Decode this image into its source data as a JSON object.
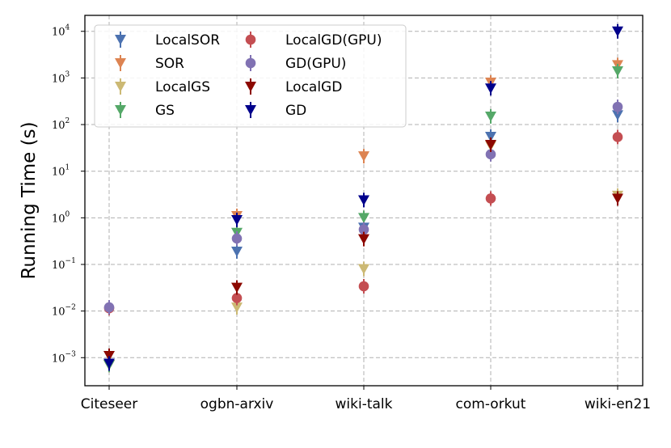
{
  "chart_data": {
    "type": "scatter",
    "title": "",
    "xlabel": "",
    "ylabel": "Running Time (s)",
    "yscale": "log",
    "ylim": [
      0.00025,
      22000
    ],
    "y_ticks": [
      {
        "base": "10",
        "exp": "−3",
        "value": 0.001
      },
      {
        "base": "10",
        "exp": "−2",
        "value": 0.01
      },
      {
        "base": "10",
        "exp": "−1",
        "value": 0.1
      },
      {
        "base": "10",
        "exp": "0",
        "value": 1
      },
      {
        "base": "10",
        "exp": "1",
        "value": 10
      },
      {
        "base": "10",
        "exp": "2",
        "value": 100
      },
      {
        "base": "10",
        "exp": "3",
        "value": 1000
      },
      {
        "base": "10",
        "exp": "4",
        "value": 10000
      }
    ],
    "categories": [
      "Citeseer",
      "ogbn-arxiv",
      "wiki-talk",
      "com-orkut",
      "wiki-en21"
    ],
    "grid": true,
    "legend_position": "top-left",
    "series": [
      {
        "name": "LocalSOR",
        "marker": "triangle-down",
        "color": "#4c72b0",
        "values": [
          0.0007,
          0.19,
          0.62,
          55,
          160
        ]
      },
      {
        "name": "SOR",
        "marker": "triangle-down",
        "color": "#dd8452",
        "values": [
          0.0007,
          1.1,
          21,
          800,
          1900
        ]
      },
      {
        "name": "LocalGS",
        "marker": "triangle-down",
        "color": "#ccb974",
        "values": [
          0.0007,
          0.012,
          0.08,
          35,
          3
        ]
      },
      {
        "name": "GS",
        "marker": "triangle-down",
        "color": "#55a868",
        "values": [
          0.0007,
          0.48,
          1.0,
          150,
          1400
        ]
      },
      {
        "name": "LocalGD(GPU)",
        "marker": "circle",
        "color": "#c44e52",
        "values": [
          0.0115,
          0.019,
          0.034,
          2.6,
          54
        ]
      },
      {
        "name": "GD(GPU)",
        "marker": "circle",
        "color": "#8172b3",
        "values": [
          0.012,
          0.36,
          0.56,
          23,
          240
        ]
      },
      {
        "name": "LocalGD",
        "marker": "triangle-down",
        "color": "#8c0800",
        "values": [
          0.0011,
          0.032,
          0.35,
          37,
          2.6
        ]
      },
      {
        "name": "GD",
        "marker": "triangle-down",
        "color": "#00008b",
        "values": [
          0.00075,
          0.9,
          2.4,
          600,
          10000
        ]
      }
    ]
  }
}
